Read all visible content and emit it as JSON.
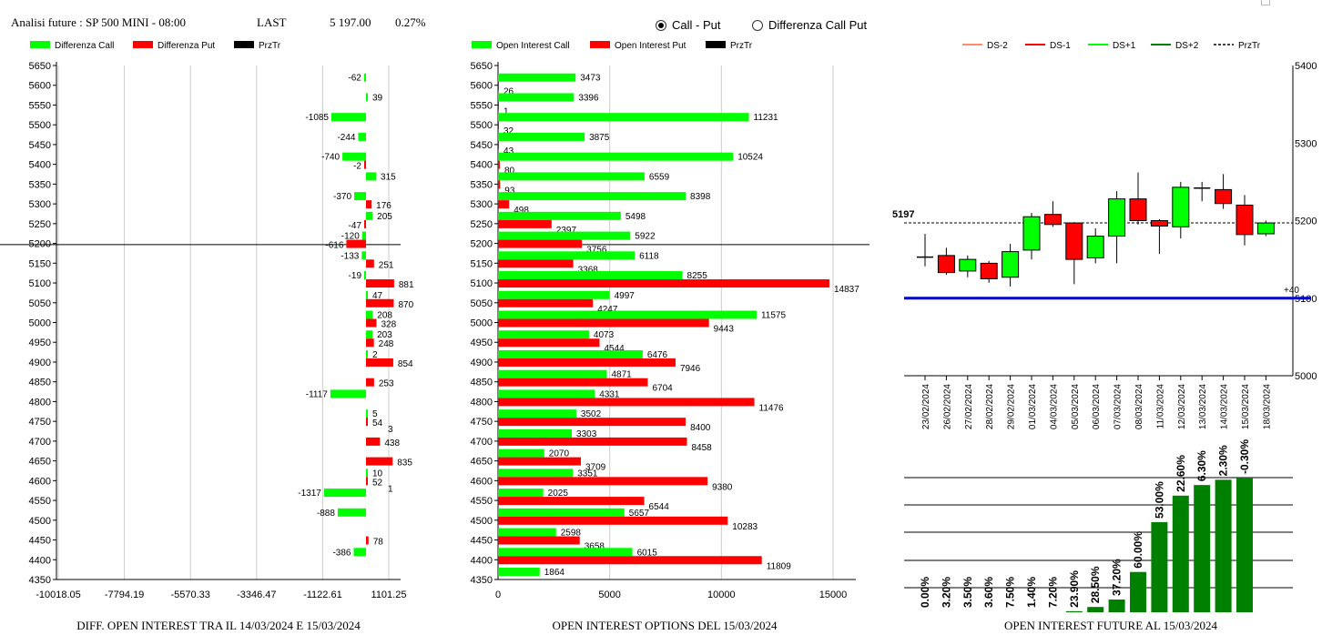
{
  "header": {
    "title": "Analisi future : SP 500 MINI - 08:00",
    "last_label": "LAST",
    "last_value": "5 197.00",
    "change": "0.27%"
  },
  "radio": {
    "option1": "Call - Put",
    "option2": "Differenza Call Put",
    "selected": 1
  },
  "colors": {
    "green": "#00ff00",
    "red": "#ff0000",
    "black": "#000000",
    "dark_green": "#008000",
    "blue": "#0000cc",
    "orange": "#ff8c69"
  },
  "footers": {
    "left": "DIFF. OPEN INTEREST TRA IL 14/03/2024 E 15/03/2024",
    "middle": "OPEN INTEREST OPTIONS DEL 15/03/2024",
    "right": "OPEN INTEREST FUTURE AL 15/03/2024"
  },
  "chart_data": [
    {
      "type": "bar",
      "orientation": "horizontal",
      "legend": [
        "Differenza Call",
        "Differenza Put",
        "PrzTr"
      ],
      "strikes": [
        5650,
        5600,
        5550,
        5500,
        5450,
        5400,
        5350,
        5300,
        5250,
        5200,
        5150,
        5100,
        5050,
        5000,
        4950,
        4900,
        4850,
        4800,
        4750,
        4700,
        4650,
        4600,
        4550,
        4500,
        4450,
        4400,
        4350
      ],
      "series": [
        {
          "name": "Differenza Call",
          "values": [
            null,
            -62,
            39,
            -1085,
            -244,
            -740,
            315,
            -370,
            205,
            -120,
            -133,
            -19,
            47,
            208,
            203,
            2,
            null,
            -1117,
            5,
            null,
            null,
            10,
            -1317,
            -888,
            null,
            -386,
            null
          ]
        },
        {
          "name": "Differenza Put",
          "values": [
            null,
            null,
            null,
            null,
            null,
            -2,
            null,
            176,
            -47,
            -616,
            251,
            881,
            870,
            328,
            248,
            854,
            253,
            null,
            54,
            438,
            835,
            52,
            null,
            null,
            78,
            null,
            null
          ]
        }
      ],
      "extra_labels": [
        {
          "strike": 4750,
          "text": "3"
        },
        {
          "strike": 4600,
          "text": "1"
        }
      ],
      "price_line": 5197,
      "xticks": [
        "-10018.05",
        "-7794.19",
        "-5570.33",
        "-3346.47",
        "-1122.61",
        "1101.25"
      ],
      "xtick_values": [
        -10018.05,
        -7794.19,
        -5570.33,
        -3346.47,
        -1122.61,
        1101.25
      ]
    },
    {
      "type": "bar",
      "orientation": "horizontal",
      "legend": [
        "Open Interest Call",
        "Open Interest Put",
        "PrzTr"
      ],
      "strikes": [
        5650,
        5600,
        5550,
        5500,
        5450,
        5400,
        5350,
        5300,
        5250,
        5200,
        5150,
        5100,
        5050,
        5000,
        4950,
        4900,
        4850,
        4800,
        4750,
        4700,
        4650,
        4600,
        4550,
        4500,
        4450,
        4400,
        4350
      ],
      "series": [
        {
          "name": "Open Interest Call",
          "values": [
            null,
            3473,
            3396,
            11231,
            3875,
            10524,
            6559,
            8398,
            5498,
            5922,
            6118,
            8255,
            4997,
            11575,
            4073,
            6476,
            4871,
            4331,
            3502,
            3303,
            2070,
            3351,
            2025,
            5657,
            2598,
            6015,
            1864
          ]
        },
        {
          "name": "Open Interest Put",
          "values": [
            null,
            26,
            1,
            32,
            43,
            80,
            93,
            498,
            2397,
            3756,
            3368,
            14837,
            4247,
            9443,
            4544,
            7946,
            6704,
            11476,
            8400,
            8458,
            3709,
            9380,
            6544,
            10283,
            3658,
            11809,
            null
          ]
        }
      ],
      "price_line": 5197,
      "xticks": [
        "0",
        "5000",
        "10000",
        "15000"
      ],
      "xtick_values": [
        0,
        5000,
        10000,
        15000
      ]
    },
    {
      "type": "candlestick",
      "legend": [
        "DS-2",
        "DS-1",
        "DS+1",
        "DS+2",
        "PrzTr"
      ],
      "dates": [
        "23/02/2024",
        "26/02/2024",
        "27/02/2024",
        "28/02/2024",
        "29/02/2024",
        "01/03/2024",
        "04/03/2024",
        "05/03/2024",
        "06/03/2024",
        "07/03/2024",
        "08/03/2024",
        "11/03/2024",
        "12/03/2024",
        "13/03/2024",
        "14/03/2024",
        "15/03/2024",
        "18/03/2024"
      ],
      "candles": [
        {
          "o": 5153,
          "c": 5153,
          "h": 5183,
          "l": 5141,
          "color": "black"
        },
        {
          "o": 5155,
          "c": 5133,
          "h": 5165,
          "l": 5130,
          "color": "red"
        },
        {
          "o": 5135,
          "c": 5150,
          "h": 5155,
          "l": 5127,
          "color": "green"
        },
        {
          "o": 5145,
          "c": 5125,
          "h": 5148,
          "l": 5120,
          "color": "red"
        },
        {
          "o": 5127,
          "c": 5160,
          "h": 5170,
          "l": 5115,
          "color": "green"
        },
        {
          "o": 5162,
          "c": 5205,
          "h": 5210,
          "l": 5150,
          "color": "green"
        },
        {
          "o": 5208,
          "c": 5195,
          "h": 5225,
          "l": 5192,
          "color": "red"
        },
        {
          "o": 5197,
          "c": 5150,
          "h": 5198,
          "l": 5118,
          "color": "red"
        },
        {
          "o": 5152,
          "c": 5180,
          "h": 5190,
          "l": 5145,
          "color": "green"
        },
        {
          "o": 5180,
          "c": 5228,
          "h": 5238,
          "l": 5145,
          "color": "green"
        },
        {
          "o": 5228,
          "c": 5200,
          "h": 5262,
          "l": 5195,
          "color": "red"
        },
        {
          "o": 5200,
          "c": 5193,
          "h": 5202,
          "l": 5157,
          "color": "red"
        },
        {
          "o": 5192,
          "c": 5243,
          "h": 5250,
          "l": 5177,
          "color": "green"
        },
        {
          "o": 5242,
          "c": 5242,
          "h": 5250,
          "l": 5225,
          "color": "black"
        },
        {
          "o": 5240,
          "c": 5222,
          "h": 5260,
          "l": 5215,
          "color": "red"
        },
        {
          "o": 5220,
          "c": 5182,
          "h": 5233,
          "l": 5168,
          "color": "red"
        },
        {
          "o": 5183,
          "c": 5197,
          "h": 5200,
          "l": 5180,
          "color": "green"
        }
      ],
      "price_line": 5197,
      "price_label": "5197",
      "blue_line": 5100,
      "blue_label": "+40",
      "yticks": [
        "5400",
        "5300",
        "5200",
        "5100",
        "5000"
      ],
      "ytick_values": [
        5400,
        5300,
        5200,
        5100,
        5000
      ]
    },
    {
      "type": "bar",
      "labels": [
        "0.00%",
        "3.20%",
        "3.50%",
        "3.60%",
        "7.50%",
        "1.40%",
        "7.20%",
        "23.90%",
        "28.50%",
        "37.20%",
        "60.00%",
        "53.00%",
        "22.60%",
        "6.30%",
        "2.30%",
        "-0.30%"
      ],
      "values": [
        0,
        0,
        0,
        0,
        0,
        0,
        0,
        1,
        5,
        12,
        38,
        85,
        110,
        120,
        125,
        127
      ]
    }
  ]
}
